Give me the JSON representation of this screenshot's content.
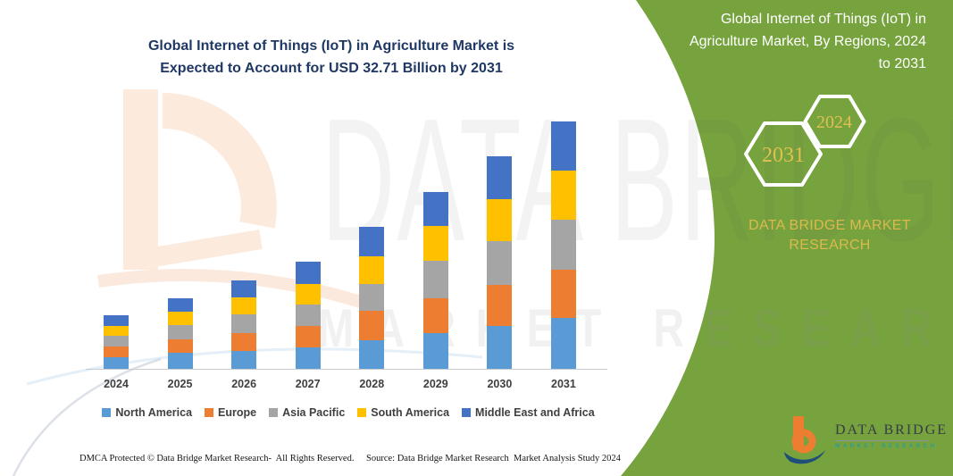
{
  "chart": {
    "title_lines": [
      "Global Internet of Things (IoT) in Agriculture Market is",
      "Expected to Account for USD 32.71 Billion by 2031"
    ]
  },
  "chart_data": {
    "type": "bar",
    "stacked": true,
    "title": "Global Internet of Things (IoT) in Agriculture Market is Expected to Account for USD 32.71 Billion by 2031",
    "categories": [
      "2024",
      "2025",
      "2026",
      "2027",
      "2028",
      "2029",
      "2030",
      "2031"
    ],
    "series": [
      {
        "name": "North America",
        "color": "#5B9BD5",
        "values": [
          1.49,
          2.08,
          2.4,
          2.87,
          3.73,
          4.75,
          5.62,
          6.68
        ]
      },
      {
        "name": "Europe",
        "color": "#ED7D31",
        "values": [
          1.45,
          1.77,
          2.36,
          2.75,
          3.93,
          4.59,
          5.5,
          6.48
        ]
      },
      {
        "name": "Asia Pacific",
        "color": "#A5A5A5",
        "values": [
          1.45,
          1.89,
          2.43,
          2.83,
          3.57,
          4.91,
          5.77,
          6.6
        ]
      },
      {
        "name": "South America",
        "color": "#FFC000",
        "values": [
          1.34,
          1.85,
          2.24,
          2.79,
          3.69,
          4.59,
          5.5,
          6.48
        ]
      },
      {
        "name": "Middle East and Africa",
        "color": "#4472C4",
        "values": [
          1.34,
          1.69,
          2.28,
          2.91,
          3.85,
          4.52,
          5.69,
          6.47
        ]
      }
    ],
    "totals": [
      7.07,
      9.28,
      11.71,
      14.15,
      18.77,
      23.36,
      28.08,
      32.71
    ],
    "xlabel": "",
    "ylabel": "",
    "ylim": [
      0,
      32.71
    ],
    "grid": false,
    "legend_position": "bottom",
    "axis_color": "#C9CDD2"
  },
  "side_panel": {
    "panel_color": "#77A33F",
    "accent_gold": "#E0C050",
    "heading_lines": [
      "Global Internet of Things (IoT) in",
      "Agriculture Market, By Regions, 2024",
      "to 2031"
    ],
    "badges": [
      {
        "label": "2031"
      },
      {
        "label": "2024"
      }
    ],
    "brand_lines": [
      "DATA BRIDGE MARKET",
      "RESEARCH"
    ]
  },
  "logo": {
    "title": "DATA BRIDGE",
    "subtitle": "MARKET RESEARCH",
    "orange": "#ED7D31",
    "blue": "#1F4E79",
    "teal": "#2F9C8F"
  },
  "watermark": {
    "line1": "DATA BRIDGE",
    "line2": "MARKET RESEARCH"
  },
  "footer": {
    "left": "DMCA Protected © Data Bridge Market Research-  All Rights Reserved.",
    "right": "Source: Data Bridge Market Research  Market Analysis Study 2024"
  }
}
